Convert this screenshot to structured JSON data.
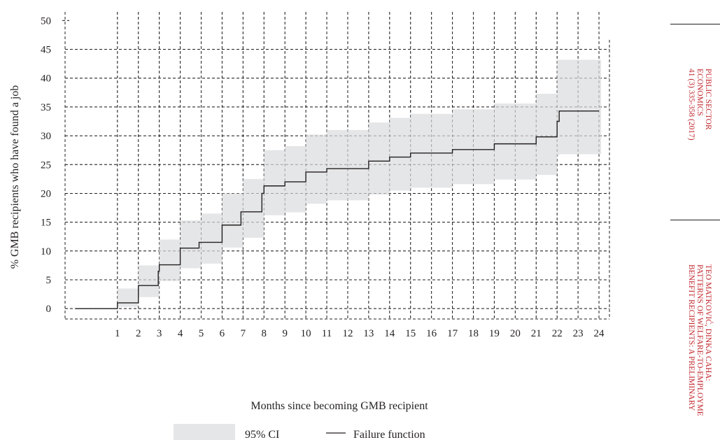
{
  "chart_data": {
    "type": "line",
    "ylabel": "% GMB recipients who have found a job",
    "xlabel": "Months since becoming GMB recipient",
    "xlim": [
      -1.5,
      24.5
    ],
    "ylim": [
      -1.8,
      51.5
    ],
    "x_ticks": [
      1,
      2,
      3,
      4,
      5,
      6,
      7,
      8,
      9,
      10,
      11,
      12,
      13,
      14,
      15,
      16,
      17,
      18,
      19,
      20,
      21,
      22,
      23,
      24
    ],
    "y_ticks": [
      0,
      5,
      10,
      15,
      20,
      25,
      30,
      35,
      40,
      45,
      50
    ],
    "grid": true,
    "legend_position": "bottom",
    "series": [
      {
        "name": "Failure function",
        "style": "step",
        "color": "#231f20",
        "x": [
          -1,
          1,
          2,
          2.95,
          3,
          4,
          4.9,
          6,
          6.9,
          7.9,
          8,
          9,
          10,
          11,
          13,
          14,
          15,
          17,
          19,
          20,
          21,
          22,
          22.1,
          24
        ],
        "y": [
          0,
          1,
          4,
          6.5,
          7.6,
          10.5,
          11.5,
          14.5,
          16.8,
          20,
          21.3,
          22,
          23.7,
          24.3,
          25.6,
          26.3,
          27,
          27.6,
          28.6,
          28.6,
          29.8,
          32.5,
          34.3,
          34.3
        ]
      },
      {
        "name": "95% CI",
        "style": "band",
        "color": "#e5e6e7",
        "x": [
          1,
          2,
          3,
          4,
          5,
          6,
          7,
          8,
          9,
          10,
          11,
          13,
          14,
          15,
          17,
          19,
          21,
          22,
          22.1,
          24
        ],
        "lower": [
          0.3,
          2,
          4.8,
          7,
          7.8,
          10.6,
          12.3,
          16.2,
          16.7,
          18.2,
          18.8,
          19.8,
          20.5,
          21,
          21.6,
          22.4,
          23.2,
          26.5,
          26.8,
          26.8
        ],
        "upper": [
          3.5,
          7.5,
          12,
          15.3,
          16.5,
          20,
          22.5,
          27.5,
          28.2,
          30.2,
          31,
          32.3,
          33.1,
          33.8,
          34.6,
          35.6,
          37.3,
          43.2,
          43.2,
          43.2
        ]
      }
    ]
  },
  "legend": {
    "ci_label": "95% CI",
    "line_label": "Failure function"
  },
  "sidebar": {
    "journal_lines": [
      "PUBLIC SECTOR",
      "ECONOMICS",
      "41 (3) 335-358 (2017)"
    ],
    "article_lines": [
      "TEO MATKOVIĆ, DINKA CAHA:",
      "PATTERNS OF WELFARE-TO-EMPLOYME",
      "BENEFIT RECIPIENTS: A PRELIMINARY"
    ],
    "accent_color": "#c1272d"
  }
}
